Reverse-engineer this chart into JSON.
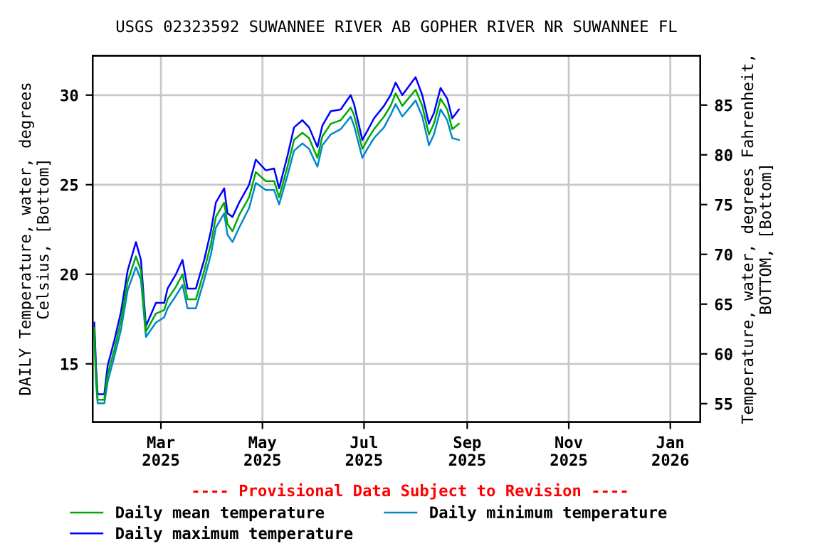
{
  "chart_data": {
    "type": "line",
    "title": "USGS 02323592 SUWANNEE RIVER AB GOPHER RIVER NR SUWANNEE FL",
    "ylabel": "DAILY Temperature, water, degrees\nCelsius, [Bottom]",
    "y2label": "Temperature, water, degrees Fahrenheit,\nBOTTOM, [Bottom]",
    "annotations": [
      "---- Provisional Data Subject to Revision ----"
    ],
    "x": [
      "2025-01-20",
      "2025-01-21",
      "2025-01-22",
      "2025-01-26",
      "2025-01-28",
      "2025-02-01",
      "2025-02-05",
      "2025-02-09",
      "2025-02-14",
      "2025-02-17",
      "2025-02-20",
      "2025-02-26",
      "2025-03-03",
      "2025-03-05",
      "2025-03-10",
      "2025-03-14",
      "2025-03-17",
      "2025-03-22",
      "2025-03-27",
      "2025-03-31",
      "2025-04-03",
      "2025-04-08",
      "2025-04-10",
      "2025-04-13",
      "2025-04-17",
      "2025-04-23",
      "2025-04-27",
      "2025-05-03",
      "2025-05-08",
      "2025-05-11",
      "2025-05-16",
      "2025-05-20",
      "2025-05-25",
      "2025-05-29",
      "2025-06-03",
      "2025-06-06",
      "2025-06-11",
      "2025-06-17",
      "2025-06-23",
      "2025-06-25",
      "2025-06-30",
      "2025-07-03",
      "2025-07-07",
      "2025-07-13",
      "2025-07-17",
      "2025-07-20",
      "2025-07-24",
      "2025-08-01",
      "2025-08-05",
      "2025-08-09",
      "2025-08-12",
      "2025-08-16",
      "2025-08-20",
      "2025-08-23",
      "2025-08-27"
    ],
    "series": [
      {
        "name": "Daily mean temperature",
        "color": "#00aa00",
        "values": [
          17.0,
          14.4,
          13.0,
          13.0,
          14.4,
          15.8,
          17.4,
          19.6,
          21.0,
          20.2,
          16.8,
          17.8,
          18.0,
          18.6,
          19.3,
          20.0,
          18.6,
          18.6,
          20.2,
          21.7,
          23.2,
          24.0,
          22.8,
          22.4,
          23.3,
          24.3,
          25.7,
          25.2,
          25.2,
          24.3,
          26.0,
          27.5,
          27.9,
          27.6,
          26.5,
          27.7,
          28.4,
          28.6,
          29.3,
          28.9,
          27.0,
          27.5,
          28.1,
          28.8,
          29.4,
          30.1,
          29.4,
          30.3,
          29.4,
          27.8,
          28.4,
          29.8,
          29.2,
          28.1,
          28.4
        ]
      },
      {
        "name": "Daily minimum temperature",
        "color": "#0088cc",
        "values": [
          16.7,
          14.0,
          12.8,
          12.8,
          14.0,
          15.4,
          16.9,
          19.1,
          20.4,
          19.7,
          16.5,
          17.3,
          17.6,
          18.1,
          18.8,
          19.4,
          18.1,
          18.1,
          19.7,
          21.1,
          22.6,
          23.4,
          22.2,
          21.8,
          22.6,
          23.7,
          25.1,
          24.7,
          24.7,
          23.9,
          25.5,
          26.9,
          27.3,
          27.0,
          26.0,
          27.2,
          27.8,
          28.1,
          28.8,
          28.3,
          26.5,
          27.0,
          27.6,
          28.2,
          28.9,
          29.5,
          28.8,
          29.7,
          28.8,
          27.2,
          27.8,
          29.2,
          28.6,
          27.6,
          27.5
        ]
      },
      {
        "name": "Daily maximum temperature",
        "color": "#0000ff",
        "values": [
          17.3,
          14.9,
          13.3,
          13.3,
          14.9,
          16.3,
          17.9,
          20.2,
          21.8,
          20.8,
          17.1,
          18.4,
          18.4,
          19.2,
          20.0,
          20.8,
          19.2,
          19.2,
          20.8,
          22.4,
          24.0,
          24.8,
          23.4,
          23.2,
          24.0,
          25.0,
          26.4,
          25.8,
          25.9,
          24.8,
          26.6,
          28.2,
          28.6,
          28.2,
          27.1,
          28.3,
          29.1,
          29.2,
          30.0,
          29.5,
          27.5,
          28.0,
          28.7,
          29.4,
          30.0,
          30.7,
          30.0,
          31.0,
          30.0,
          28.4,
          29.0,
          30.4,
          29.8,
          28.7,
          29.2
        ]
      }
    ],
    "xlim": [
      "2025-01-19",
      "2026-01-19"
    ],
    "xticks": [
      {
        "value": "2025-03-01",
        "label": "Mar\n2025"
      },
      {
        "value": "2025-05-01",
        "label": "May\n2025"
      },
      {
        "value": "2025-07-01",
        "label": "Jul\n2025"
      },
      {
        "value": "2025-09-01",
        "label": "Sep\n2025"
      },
      {
        "value": "2025-11-01",
        "label": "Nov\n2025"
      },
      {
        "value": "2026-01-01",
        "label": "Jan\n2026"
      }
    ],
    "ylim": [
      11.75,
      32.2
    ],
    "yticks": [
      15,
      20,
      25,
      30
    ],
    "y2lim": [
      53.15,
      89.96
    ],
    "y2ticks": [
      55,
      60,
      65,
      70,
      75,
      80,
      85
    ],
    "grid": true,
    "legend": "bottom",
    "marker": "none",
    "line_style": "solid"
  }
}
